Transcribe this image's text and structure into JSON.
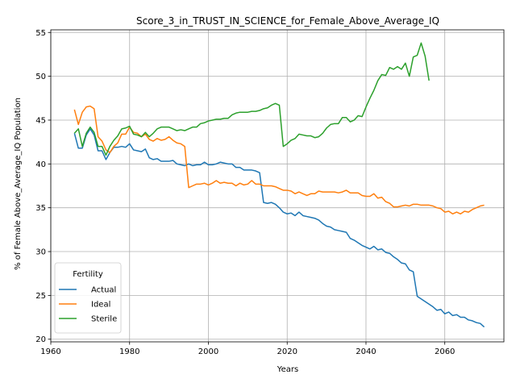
{
  "chart_data": {
    "type": "line",
    "title": "Score_3_in_TRUST_IN_SCIENCE_for_Female_Above_Average_IQ",
    "xlabel": "Years",
    "ylabel": "% of Female Above_Average_IQ Population",
    "xlim": [
      1960,
      2075
    ],
    "ylim": [
      19.7,
      55.3
    ],
    "xticks": [
      1960,
      1980,
      2000,
      2020,
      2040,
      2060
    ],
    "yticks": [
      20,
      25,
      30,
      35,
      40,
      45,
      50,
      55
    ],
    "grid": true,
    "legend": {
      "title": "Fertility",
      "placement": "lower-left"
    },
    "series": [
      {
        "name": "Actual",
        "color": "#1f77b4",
        "points": [
          [
            1966,
            43.5
          ],
          [
            1967,
            41.8
          ],
          [
            1968,
            41.8
          ],
          [
            1969,
            43.3
          ],
          [
            1970,
            44.0
          ],
          [
            1971,
            43.3
          ],
          [
            1972,
            41.5
          ],
          [
            1973,
            41.5
          ],
          [
            1974,
            40.5
          ],
          [
            1975,
            41.3
          ],
          [
            1976,
            41.9
          ],
          [
            1977,
            41.9
          ],
          [
            1978,
            42.0
          ],
          [
            1979,
            41.9
          ],
          [
            1980,
            42.3
          ],
          [
            1981,
            41.6
          ],
          [
            1982,
            41.5
          ],
          [
            1983,
            41.4
          ],
          [
            1984,
            41.7
          ],
          [
            1985,
            40.7
          ],
          [
            1986,
            40.5
          ],
          [
            1987,
            40.6
          ],
          [
            1988,
            40.3
          ],
          [
            1989,
            40.3
          ],
          [
            1990,
            40.3
          ],
          [
            1991,
            40.4
          ],
          [
            1992,
            40.0
          ],
          [
            1993,
            39.9
          ],
          [
            1994,
            39.8
          ],
          [
            1995,
            40.0
          ],
          [
            1996,
            39.8
          ],
          [
            1997,
            39.9
          ],
          [
            1998,
            39.9
          ],
          [
            1999,
            40.2
          ],
          [
            2000,
            39.9
          ],
          [
            2001,
            39.9
          ],
          [
            2002,
            40.0
          ],
          [
            2003,
            40.2
          ],
          [
            2004,
            40.1
          ],
          [
            2005,
            40.0
          ],
          [
            2006,
            40.0
          ],
          [
            2007,
            39.6
          ],
          [
            2008,
            39.6
          ],
          [
            2009,
            39.3
          ],
          [
            2010,
            39.3
          ],
          [
            2011,
            39.3
          ],
          [
            2012,
            39.2
          ],
          [
            2013,
            39.0
          ],
          [
            2014,
            35.6
          ],
          [
            2015,
            35.5
          ],
          [
            2016,
            35.6
          ],
          [
            2017,
            35.4
          ],
          [
            2018,
            35.0
          ],
          [
            2019,
            34.5
          ],
          [
            2020,
            34.3
          ],
          [
            2021,
            34.4
          ],
          [
            2022,
            34.1
          ],
          [
            2023,
            34.5
          ],
          [
            2024,
            34.1
          ],
          [
            2025,
            34.0
          ],
          [
            2026,
            33.9
          ],
          [
            2027,
            33.8
          ],
          [
            2028,
            33.6
          ],
          [
            2029,
            33.2
          ],
          [
            2030,
            32.9
          ],
          [
            2031,
            32.8
          ],
          [
            2032,
            32.5
          ],
          [
            2033,
            32.4
          ],
          [
            2034,
            32.3
          ],
          [
            2035,
            32.2
          ],
          [
            2036,
            31.5
          ],
          [
            2037,
            31.3
          ],
          [
            2038,
            31.0
          ],
          [
            2039,
            30.7
          ],
          [
            2040,
            30.5
          ],
          [
            2041,
            30.3
          ],
          [
            2042,
            30.6
          ],
          [
            2043,
            30.2
          ],
          [
            2044,
            30.3
          ],
          [
            2045,
            29.9
          ],
          [
            2046,
            29.8
          ],
          [
            2047,
            29.4
          ],
          [
            2048,
            29.1
          ],
          [
            2049,
            28.7
          ],
          [
            2050,
            28.6
          ],
          [
            2051,
            27.9
          ],
          [
            2052,
            27.7
          ],
          [
            2053,
            24.9
          ],
          [
            2054,
            24.6
          ],
          [
            2055,
            24.3
          ],
          [
            2056,
            24.0
          ],
          [
            2057,
            23.7
          ],
          [
            2058,
            23.3
          ],
          [
            2059,
            23.4
          ],
          [
            2060,
            22.9
          ],
          [
            2061,
            23.1
          ],
          [
            2062,
            22.7
          ],
          [
            2063,
            22.8
          ],
          [
            2064,
            22.5
          ],
          [
            2065,
            22.5
          ],
          [
            2066,
            22.2
          ],
          [
            2067,
            22.1
          ],
          [
            2068,
            21.9
          ],
          [
            2069,
            21.8
          ],
          [
            2070,
            21.4
          ]
        ]
      },
      {
        "name": "Ideal",
        "color": "#ff7f0e",
        "points": [
          [
            1966,
            46.2
          ],
          [
            1967,
            44.5
          ],
          [
            1968,
            45.9
          ],
          [
            1969,
            46.5
          ],
          [
            1970,
            46.6
          ],
          [
            1971,
            46.3
          ],
          [
            1972,
            43.1
          ],
          [
            1973,
            42.6
          ],
          [
            1974,
            41.6
          ],
          [
            1975,
            41.3
          ],
          [
            1976,
            42.0
          ],
          [
            1977,
            42.4
          ],
          [
            1978,
            43.4
          ],
          [
            1979,
            43.4
          ],
          [
            1980,
            44.2
          ],
          [
            1981,
            43.6
          ],
          [
            1982,
            43.5
          ],
          [
            1983,
            43.1
          ],
          [
            1984,
            43.4
          ],
          [
            1985,
            42.8
          ],
          [
            1986,
            42.6
          ],
          [
            1987,
            42.9
          ],
          [
            1988,
            42.7
          ],
          [
            1989,
            42.8
          ],
          [
            1990,
            43.1
          ],
          [
            1991,
            42.7
          ],
          [
            1992,
            42.4
          ],
          [
            1993,
            42.3
          ],
          [
            1994,
            42.0
          ],
          [
            1995,
            37.3
          ],
          [
            1996,
            37.5
          ],
          [
            1997,
            37.7
          ],
          [
            1998,
            37.7
          ],
          [
            1999,
            37.8
          ],
          [
            2000,
            37.6
          ],
          [
            2001,
            37.8
          ],
          [
            2002,
            38.1
          ],
          [
            2003,
            37.8
          ],
          [
            2004,
            37.9
          ],
          [
            2005,
            37.8
          ],
          [
            2006,
            37.8
          ],
          [
            2007,
            37.5
          ],
          [
            2008,
            37.8
          ],
          [
            2009,
            37.6
          ],
          [
            2010,
            37.7
          ],
          [
            2011,
            38.1
          ],
          [
            2012,
            37.7
          ],
          [
            2013,
            37.7
          ],
          [
            2014,
            37.5
          ],
          [
            2015,
            37.5
          ],
          [
            2016,
            37.5
          ],
          [
            2017,
            37.4
          ],
          [
            2018,
            37.2
          ],
          [
            2019,
            37.0
          ],
          [
            2020,
            37.0
          ],
          [
            2021,
            36.9
          ],
          [
            2022,
            36.6
          ],
          [
            2023,
            36.8
          ],
          [
            2024,
            36.6
          ],
          [
            2025,
            36.4
          ],
          [
            2026,
            36.6
          ],
          [
            2027,
            36.6
          ],
          [
            2028,
            36.9
          ],
          [
            2029,
            36.8
          ],
          [
            2030,
            36.8
          ],
          [
            2031,
            36.8
          ],
          [
            2032,
            36.8
          ],
          [
            2033,
            36.7
          ],
          [
            2034,
            36.8
          ],
          [
            2035,
            37.0
          ],
          [
            2036,
            36.7
          ],
          [
            2037,
            36.7
          ],
          [
            2038,
            36.7
          ],
          [
            2039,
            36.4
          ],
          [
            2040,
            36.3
          ],
          [
            2041,
            36.3
          ],
          [
            2042,
            36.6
          ],
          [
            2043,
            36.1
          ],
          [
            2044,
            36.2
          ],
          [
            2045,
            35.7
          ],
          [
            2046,
            35.5
          ],
          [
            2047,
            35.1
          ],
          [
            2048,
            35.1
          ],
          [
            2049,
            35.2
          ],
          [
            2050,
            35.3
          ],
          [
            2051,
            35.2
          ],
          [
            2052,
            35.4
          ],
          [
            2053,
            35.4
          ],
          [
            2054,
            35.3
          ],
          [
            2055,
            35.3
          ],
          [
            2056,
            35.3
          ],
          [
            2057,
            35.2
          ],
          [
            2058,
            35.0
          ],
          [
            2059,
            34.9
          ],
          [
            2060,
            34.5
          ],
          [
            2061,
            34.6
          ],
          [
            2062,
            34.3
          ],
          [
            2063,
            34.5
          ],
          [
            2064,
            34.3
          ],
          [
            2065,
            34.6
          ],
          [
            2066,
            34.5
          ],
          [
            2067,
            34.8
          ],
          [
            2068,
            35.0
          ],
          [
            2069,
            35.2
          ],
          [
            2070,
            35.3
          ]
        ]
      },
      {
        "name": "Sterile",
        "color": "#2ca02c",
        "points": [
          [
            1966,
            43.5
          ],
          [
            1967,
            44.0
          ],
          [
            1968,
            42.0
          ],
          [
            1969,
            43.5
          ],
          [
            1970,
            44.2
          ],
          [
            1971,
            43.6
          ],
          [
            1972,
            42.0
          ],
          [
            1973,
            42.0
          ],
          [
            1974,
            41.0
          ],
          [
            1975,
            42.0
          ],
          [
            1976,
            42.7
          ],
          [
            1977,
            43.2
          ],
          [
            1978,
            44.0
          ],
          [
            1979,
            44.1
          ],
          [
            1980,
            44.3
          ],
          [
            1981,
            43.4
          ],
          [
            1982,
            43.3
          ],
          [
            1983,
            43.1
          ],
          [
            1984,
            43.6
          ],
          [
            1985,
            43.1
          ],
          [
            1986,
            43.5
          ],
          [
            1987,
            44.0
          ],
          [
            1988,
            44.2
          ],
          [
            1989,
            44.2
          ],
          [
            1990,
            44.2
          ],
          [
            1991,
            44.0
          ],
          [
            1992,
            43.8
          ],
          [
            1993,
            43.9
          ],
          [
            1994,
            43.8
          ],
          [
            1995,
            44.0
          ],
          [
            1996,
            44.2
          ],
          [
            1997,
            44.2
          ],
          [
            1998,
            44.6
          ],
          [
            1999,
            44.7
          ],
          [
            2000,
            44.9
          ],
          [
            2001,
            45.0
          ],
          [
            2002,
            45.1
          ],
          [
            2003,
            45.1
          ],
          [
            2004,
            45.2
          ],
          [
            2005,
            45.2
          ],
          [
            2006,
            45.6
          ],
          [
            2007,
            45.8
          ],
          [
            2008,
            45.9
          ],
          [
            2009,
            45.9
          ],
          [
            2010,
            45.9
          ],
          [
            2011,
            46.0
          ],
          [
            2012,
            46.0
          ],
          [
            2013,
            46.1
          ],
          [
            2014,
            46.3
          ],
          [
            2015,
            46.4
          ],
          [
            2016,
            46.7
          ],
          [
            2017,
            46.9
          ],
          [
            2018,
            46.7
          ],
          [
            2019,
            42.0
          ],
          [
            2020,
            42.3
          ],
          [
            2021,
            42.7
          ],
          [
            2022,
            42.9
          ],
          [
            2023,
            43.4
          ],
          [
            2024,
            43.3
          ],
          [
            2025,
            43.2
          ],
          [
            2026,
            43.2
          ],
          [
            2027,
            43.0
          ],
          [
            2028,
            43.1
          ],
          [
            2029,
            43.5
          ],
          [
            2030,
            44.1
          ],
          [
            2031,
            44.5
          ],
          [
            2032,
            44.6
          ],
          [
            2033,
            44.6
          ],
          [
            2034,
            45.3
          ],
          [
            2035,
            45.3
          ],
          [
            2036,
            44.8
          ],
          [
            2037,
            45.0
          ],
          [
            2038,
            45.5
          ],
          [
            2039,
            45.4
          ],
          [
            2040,
            46.5
          ],
          [
            2041,
            47.5
          ],
          [
            2042,
            48.4
          ],
          [
            2043,
            49.5
          ],
          [
            2044,
            50.2
          ],
          [
            2045,
            50.1
          ],
          [
            2046,
            51.0
          ],
          [
            2047,
            50.8
          ],
          [
            2048,
            51.1
          ],
          [
            2049,
            50.8
          ],
          [
            2050,
            51.5
          ],
          [
            2051,
            50.0
          ],
          [
            2052,
            52.2
          ],
          [
            2053,
            52.4
          ],
          [
            2054,
            53.8
          ],
          [
            2055,
            52.3
          ],
          [
            2056,
            49.5
          ]
        ]
      }
    ]
  }
}
